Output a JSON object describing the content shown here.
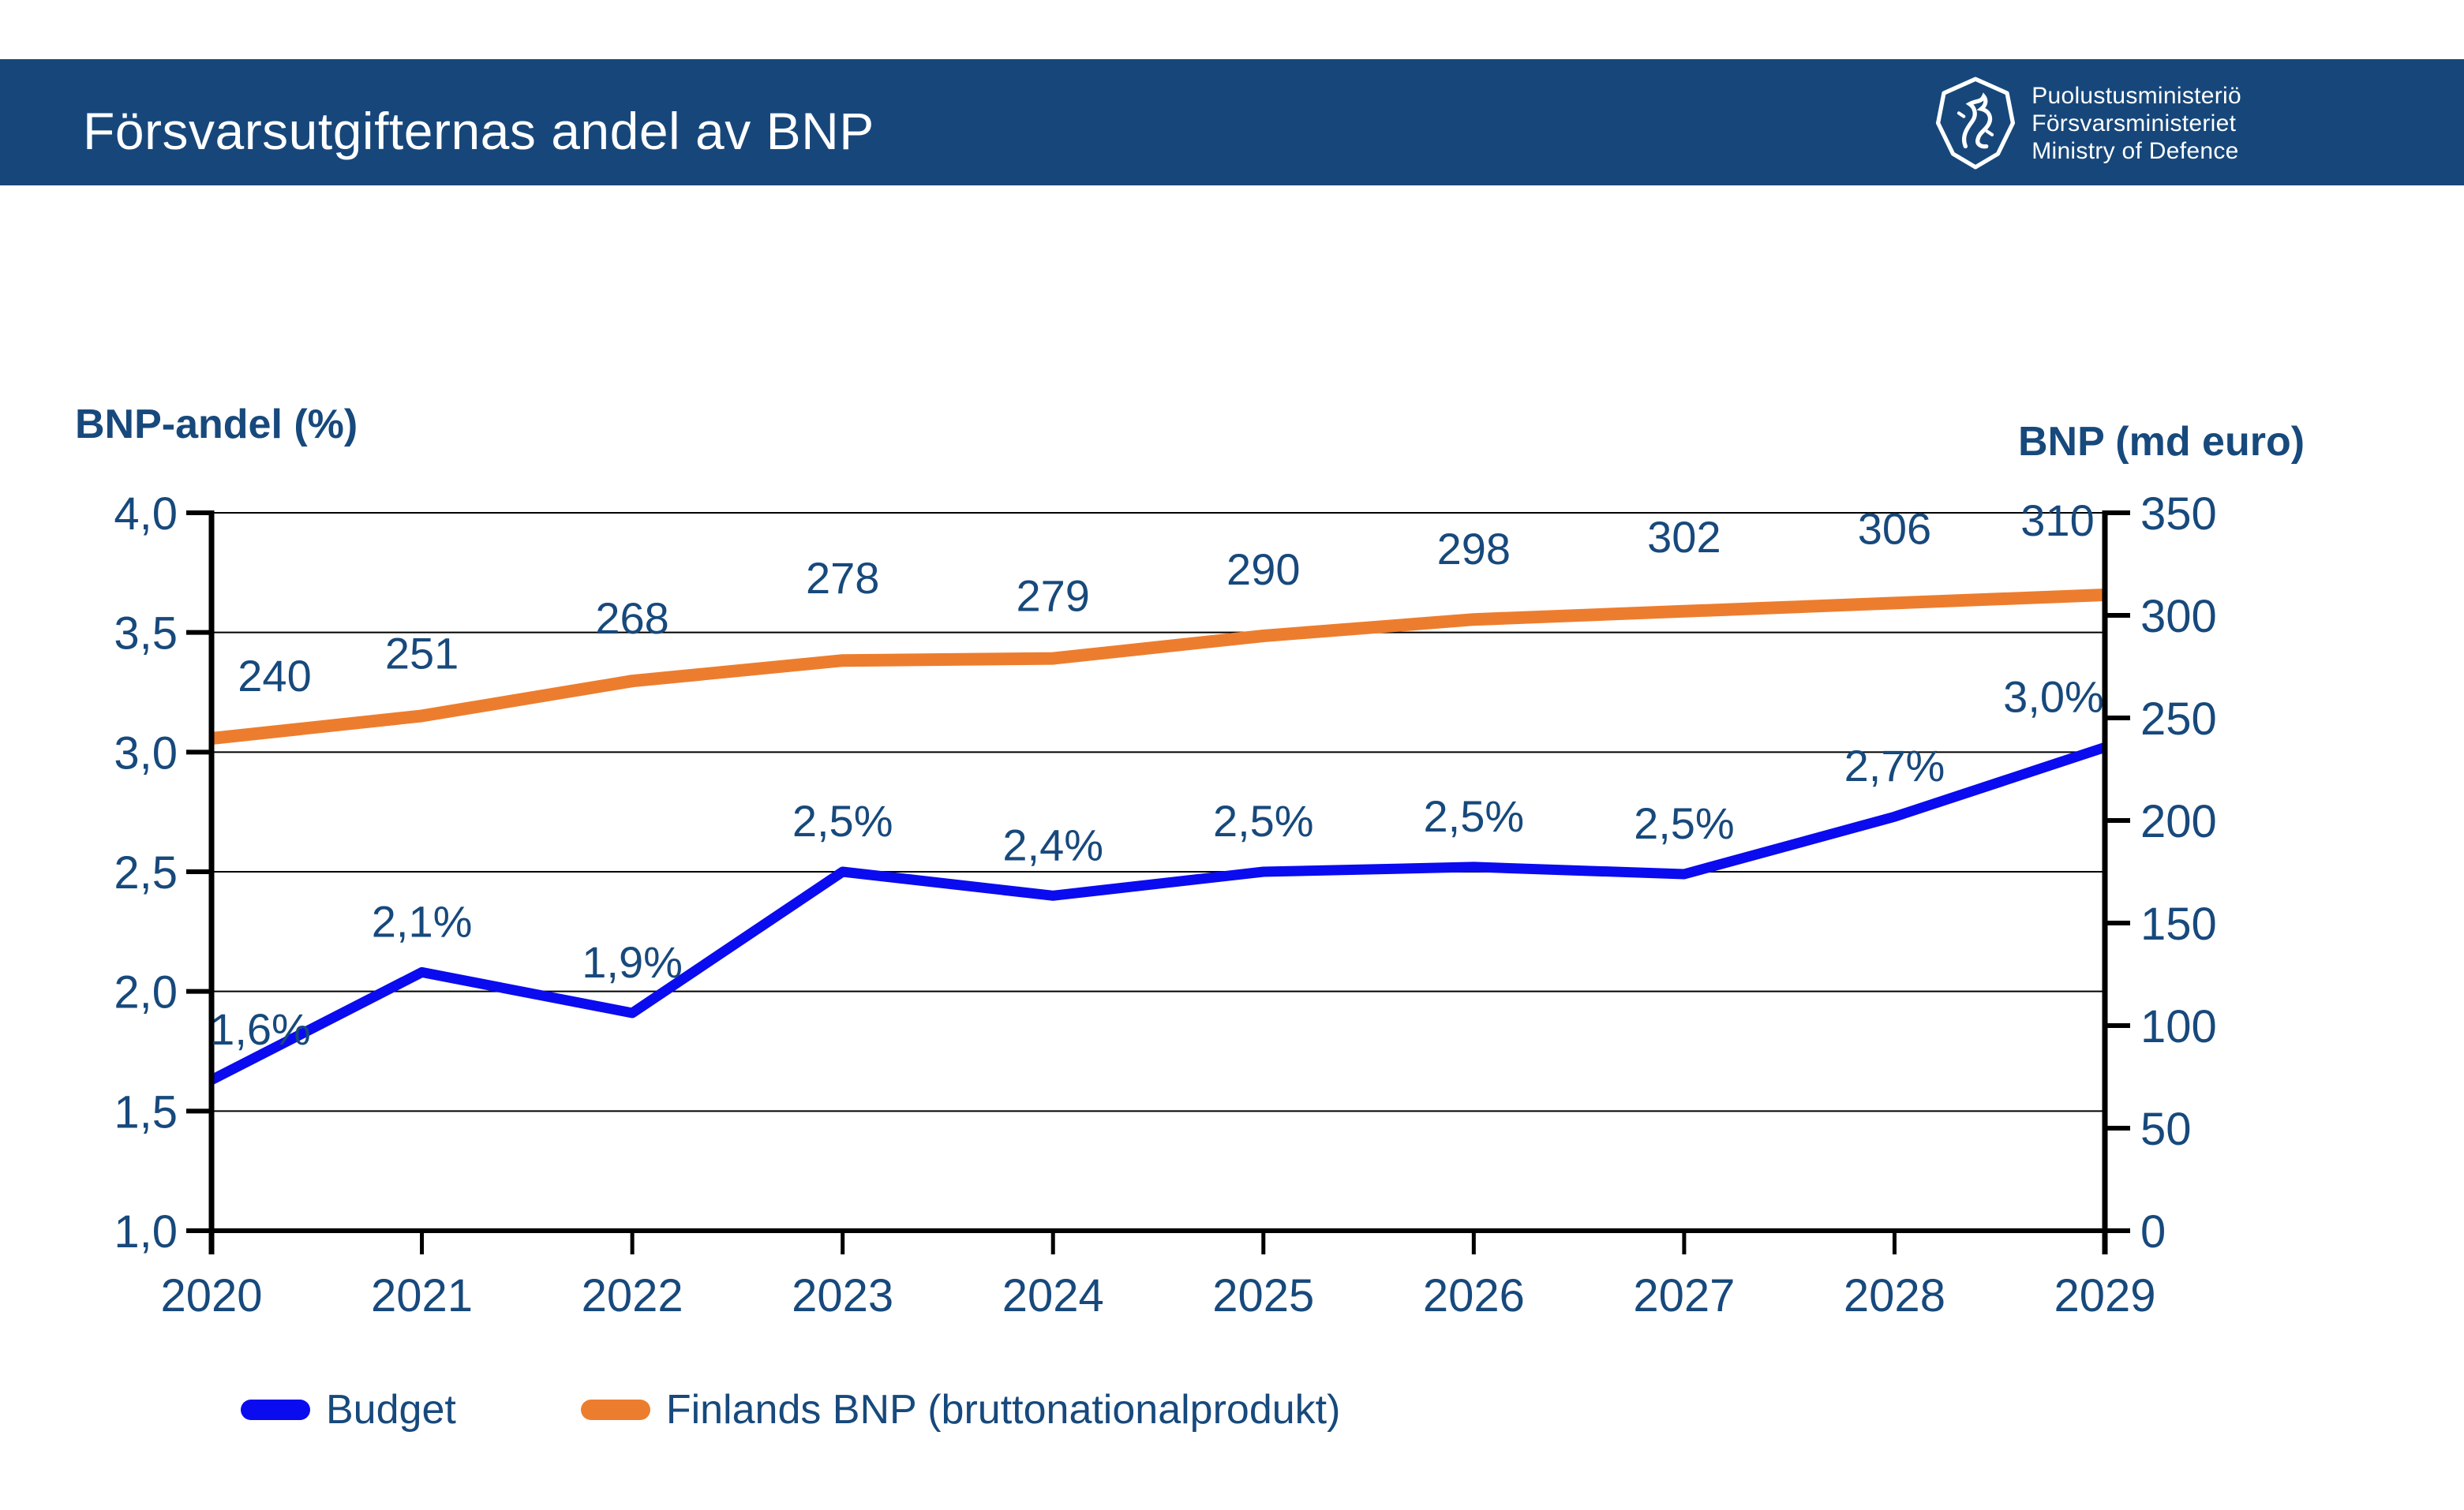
{
  "header": {
    "title": "Försvarsutgifternas andel av BNP",
    "logo_lines": [
      "Puolustusministeriö",
      "Försvarsministeriet",
      "Ministry of Defence"
    ]
  },
  "left_axis": {
    "title": "BNP-andel (%)",
    "tick_labels": [
      "4,0",
      "3,5",
      "3,0",
      "2,5",
      "2,0",
      "1,5",
      "1,0"
    ],
    "tick_values": [
      4.0,
      3.5,
      3.0,
      2.5,
      2.0,
      1.5,
      1.0
    ],
    "range": [
      1.0,
      4.0
    ]
  },
  "right_axis": {
    "title": "BNP (md euro)",
    "tick_labels": [
      "350",
      "300",
      "250",
      "200",
      "150",
      "100",
      "50",
      "0"
    ],
    "tick_values": [
      350,
      300,
      250,
      200,
      150,
      100,
      50,
      0
    ],
    "range": [
      0,
      350
    ]
  },
  "chart_data": {
    "type": "line",
    "title": "Försvarsutgifternas andel av BNP",
    "categories": [
      "2020",
      "2021",
      "2022",
      "2023",
      "2024",
      "2025",
      "2026",
      "2027",
      "2028",
      "2029"
    ],
    "xlabel": "",
    "ylabel_left": "BNP-andel (%)",
    "ylabel_right": "BNP (md euro)",
    "ylim_left": [
      1.0,
      4.0
    ],
    "ylim_right": [
      0,
      350
    ],
    "grid": "horizontal",
    "legend_position": "bottom",
    "series": [
      {
        "name": "Budget",
        "axis": "left",
        "color": "#0b0bef",
        "values": [
          1.6,
          2.1,
          1.9,
          2.5,
          2.4,
          2.5,
          2.5,
          2.5,
          2.7,
          3.0
        ],
        "plot_values": [
          1.63,
          2.08,
          1.91,
          2.5,
          2.4,
          2.5,
          2.52,
          2.49,
          2.73,
          3.02
        ],
        "labels": [
          "1,6%",
          "2,1%",
          "1,9%",
          "2,5%",
          "2,4%",
          "2,5%",
          "2,5%",
          "2,5%",
          "2,7%",
          "3,0%"
        ]
      },
      {
        "name": "Finlands BNP (bruttonationalprodukt)",
        "axis": "right",
        "color": "#ed7d2e",
        "values": [
          240,
          251,
          268,
          278,
          279,
          290,
          298,
          302,
          306,
          310
        ],
        "labels": [
          "240",
          "251",
          "268",
          "278",
          "279",
          "290",
          "298",
          "302",
          "306",
          "310"
        ]
      }
    ]
  },
  "legend": {
    "items": [
      {
        "label": "Budget",
        "color": "#0b0bef"
      },
      {
        "label": "Finlands BNP (bruttonationalprodukt)",
        "color": "#ed7d2e"
      }
    ]
  },
  "colors": {
    "header_bg": "#17477a",
    "chart_text": "#17497c",
    "axis_line": "#000000",
    "budget_line": "#0b0bef",
    "bnp_line": "#ed7d2e"
  }
}
